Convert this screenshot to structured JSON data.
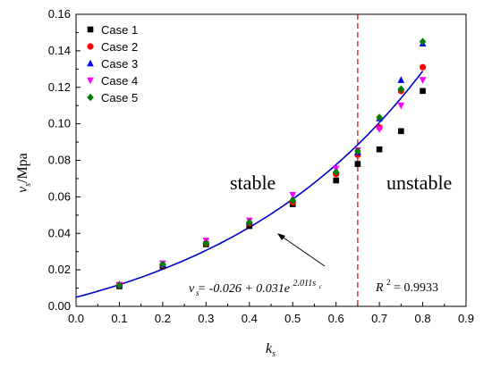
{
  "chart_data": {
    "type": "scatter",
    "xlabel": "k",
    "xlabel_sub": "s",
    "ylabel": "v",
    "ylabel_sub": "s",
    "ylabel_unit": "/Mpa",
    "xlim": [
      0.0,
      0.9
    ],
    "ylim": [
      0.0,
      0.16
    ],
    "x_ticks": [
      "0.0",
      "0.1",
      "0.2",
      "0.3",
      "0.4",
      "0.5",
      "0.6",
      "0.7",
      "0.8",
      "0.9"
    ],
    "y_ticks": [
      "0.00",
      "0.02",
      "0.04",
      "0.06",
      "0.08",
      "0.10",
      "0.12",
      "0.14",
      "0.16"
    ],
    "legend_position": "top-left",
    "series": [
      {
        "name": "Case 1",
        "color": "#000000",
        "marker": "square",
        "x": [
          0.1,
          0.2,
          0.3,
          0.4,
          0.5,
          0.6,
          0.65,
          0.7,
          0.75,
          0.8
        ],
        "y": [
          0.011,
          0.022,
          0.034,
          0.044,
          0.056,
          0.069,
          0.078,
          0.086,
          0.096,
          0.118
        ]
      },
      {
        "name": "Case 2",
        "color": "#ff0000",
        "marker": "circle",
        "x": [
          0.1,
          0.2,
          0.3,
          0.4,
          0.5,
          0.6,
          0.65,
          0.7,
          0.75,
          0.8
        ],
        "y": [
          0.0115,
          0.0225,
          0.0345,
          0.0455,
          0.057,
          0.0725,
          0.083,
          0.098,
          0.118,
          0.131
        ]
      },
      {
        "name": "Case 3",
        "color": "#0000ff",
        "marker": "triangle-up",
        "x": [
          0.1,
          0.2,
          0.3,
          0.4,
          0.5,
          0.6,
          0.65,
          0.7,
          0.75,
          0.8
        ],
        "y": [
          0.012,
          0.023,
          0.0355,
          0.0465,
          0.059,
          0.0745,
          0.0845,
          0.103,
          0.124,
          0.144
        ]
      },
      {
        "name": "Case 4",
        "color": "#ff00ff",
        "marker": "triangle-down",
        "x": [
          0.1,
          0.2,
          0.3,
          0.4,
          0.5,
          0.6,
          0.65,
          0.7,
          0.75,
          0.8
        ],
        "y": [
          0.0118,
          0.0235,
          0.036,
          0.047,
          0.061,
          0.0755,
          0.0855,
          0.097,
          0.11,
          0.124
        ]
      },
      {
        "name": "Case 5",
        "color": "#008000",
        "marker": "diamond",
        "x": [
          0.1,
          0.2,
          0.3,
          0.4,
          0.5,
          0.6,
          0.65,
          0.7,
          0.75,
          0.8
        ],
        "y": [
          0.0115,
          0.023,
          0.0345,
          0.046,
          0.058,
          0.0735,
          0.085,
          0.1035,
          0.119,
          0.145
        ]
      }
    ],
    "fit_curve": {
      "a": -0.026,
      "b": 0.031,
      "c": 2.011,
      "x_from": 0.0,
      "x_to": 0.8,
      "color": "#0000cc"
    },
    "threshold_line": {
      "x": 0.65,
      "color": "#cc0000",
      "style": "dashed"
    },
    "annotations": {
      "stable": "stable",
      "unstable": "unstable",
      "equation": "v  = -0.026 + 0.031e",
      "equation_sub": "s",
      "equation_exp": "2.011s",
      "equation_exp_sub": "c",
      "r2_label": "R",
      "r2_sup": "2",
      "r2_value": " = 0.9933"
    }
  }
}
